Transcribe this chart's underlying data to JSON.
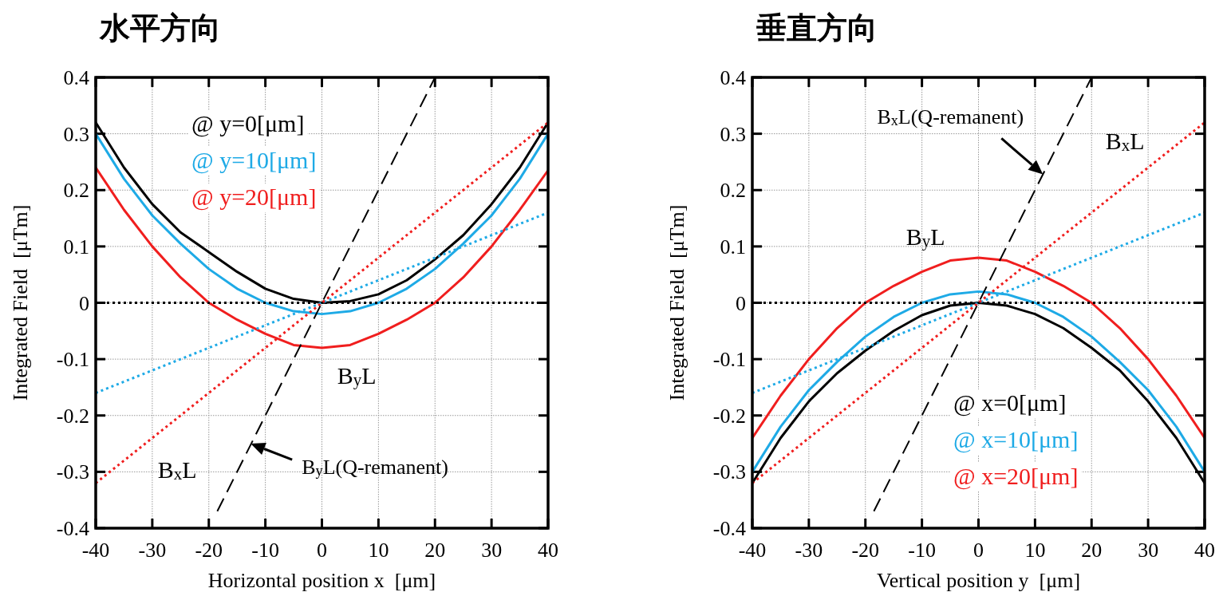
{
  "chart_data": [
    {
      "type": "line",
      "title": "水平方向",
      "xlabel": "Horizontal position x  [μm]",
      "ylabel": "Integrated Field  [μTm]",
      "xlim": [
        -40,
        40
      ],
      "ylim": [
        -0.4,
        0.4
      ],
      "xticks": [
        -40,
        -30,
        -20,
        -10,
        0,
        10,
        20,
        30,
        40
      ],
      "yticks": [
        -0.4,
        -0.3,
        -0.2,
        -0.1,
        0,
        0.1,
        0.2,
        0.3,
        0.4
      ],
      "grid": true,
      "legend": "top left",
      "series": [
        {
          "name": "@ y=0[μm]",
          "color": "#000000",
          "line_style": "solid",
          "x": [
            -40,
            -35,
            -30,
            -25,
            -20,
            -15,
            -10,
            -5,
            0,
            5,
            10,
            15,
            20,
            25,
            30,
            35,
            40
          ],
          "values": [
            0.32,
            0.24,
            0.175,
            0.125,
            0.09,
            0.055,
            0.025,
            0.007,
            0,
            0.003,
            0.015,
            0.04,
            0.077,
            0.12,
            0.175,
            0.24,
            0.32
          ]
        },
        {
          "name": "@ y=10[μm]",
          "color": "#1eaae6",
          "line_style": "solid",
          "x": [
            -40,
            -35,
            -30,
            -25,
            -20,
            -15,
            -10,
            -5,
            0,
            5,
            10,
            15,
            20,
            25,
            30,
            35,
            40
          ],
          "values": [
            0.3,
            0.22,
            0.155,
            0.105,
            0.06,
            0.025,
            0,
            -0.015,
            -0.02,
            -0.015,
            0,
            0.025,
            0.06,
            0.105,
            0.155,
            0.22,
            0.3
          ]
        },
        {
          "name": "@ y=20[μm]",
          "color": "#f01e1e",
          "line_style": "solid",
          "x": [
            -40,
            -35,
            -30,
            -25,
            -20,
            -15,
            -10,
            -5,
            0,
            5,
            10,
            15,
            20,
            25,
            30,
            35,
            40
          ],
          "values": [
            0.24,
            0.165,
            0.1,
            0.045,
            0,
            -0.03,
            -0.055,
            -0.075,
            -0.08,
            -0.075,
            -0.055,
            -0.03,
            0,
            0.045,
            0.1,
            0.165,
            0.235
          ]
        },
        {
          "color": "#000000",
          "line_style": "dotted",
          "x": [
            -40,
            40
          ],
          "values": [
            0,
            0
          ]
        },
        {
          "color": "#1eaae6",
          "line_style": "dotted",
          "x": [
            -40,
            40
          ],
          "values": [
            -0.16,
            0.16
          ]
        },
        {
          "color": "#f01e1e",
          "line_style": "dotted",
          "x": [
            -40,
            40
          ],
          "values": [
            -0.32,
            0.32
          ]
        },
        {
          "color": "#000000",
          "line_style": "dashed",
          "x": [
            -18.5,
            20
          ],
          "values": [
            -0.37,
            0.4
          ]
        }
      ],
      "annotations": [
        "B$_{y}$L",
        "B$_{x}$L",
        {
          "text": "B$_{y}$L(Q-remanent)",
          "x": -12.6,
          "y": -0.25
        }
      ]
    },
    {
      "type": "line",
      "title": "垂直方向",
      "xlabel": "Vertical position y  [μm]",
      "ylabel": "Integrated Field  [μTm]",
      "xlim": [
        -40,
        40
      ],
      "ylim": [
        -0.4,
        0.4
      ],
      "xticks": [
        -40,
        -30,
        -20,
        -10,
        0,
        10,
        20,
        30,
        40
      ],
      "yticks": [
        -0.4,
        -0.3,
        -0.2,
        -0.1,
        0,
        0.1,
        0.2,
        0.3,
        0.4
      ],
      "grid": true,
      "legend": "bottom right",
      "series": [
        {
          "name": "@ x=0[μm]",
          "color": "#000000",
          "line_style": "solid",
          "x": [
            -40,
            -35,
            -30,
            -25,
            -20,
            -15,
            -10,
            -5,
            0,
            5,
            10,
            15,
            20,
            25,
            30,
            35,
            40
          ],
          "values": [
            -0.32,
            -0.24,
            -0.175,
            -0.125,
            -0.085,
            -0.05,
            -0.022,
            -0.005,
            0,
            -0.005,
            -0.02,
            -0.045,
            -0.08,
            -0.12,
            -0.175,
            -0.24,
            -0.32
          ]
        },
        {
          "name": "@ x=10[μm]",
          "color": "#1eaae6",
          "line_style": "solid",
          "x": [
            -40,
            -35,
            -30,
            -25,
            -20,
            -15,
            -10,
            -5,
            0,
            5,
            10,
            15,
            20,
            25,
            30,
            35,
            40
          ],
          "values": [
            -0.3,
            -0.22,
            -0.155,
            -0.105,
            -0.06,
            -0.025,
            0,
            0.015,
            0.02,
            0.015,
            0,
            -0.025,
            -0.06,
            -0.105,
            -0.155,
            -0.22,
            -0.3
          ]
        },
        {
          "name": "@ x=20[μm]",
          "color": "#f01e1e",
          "line_style": "solid",
          "x": [
            -40,
            -35,
            -30,
            -25,
            -20,
            -15,
            -10,
            -5,
            0,
            5,
            10,
            15,
            20,
            25,
            30,
            35,
            40
          ],
          "values": [
            -0.24,
            -0.165,
            -0.1,
            -0.045,
            0,
            0.03,
            0.055,
            0.075,
            0.08,
            0.075,
            0.055,
            0.03,
            0,
            -0.045,
            -0.1,
            -0.165,
            -0.24
          ]
        },
        {
          "color": "#000000",
          "line_style": "dotted",
          "x": [
            -40,
            40
          ],
          "values": [
            0,
            0
          ]
        },
        {
          "color": "#1eaae6",
          "line_style": "dotted",
          "x": [
            -40,
            40
          ],
          "values": [
            -0.16,
            0.16
          ]
        },
        {
          "color": "#f01e1e",
          "line_style": "dotted",
          "x": [
            -40,
            40
          ],
          "values": [
            -0.32,
            0.32
          ]
        },
        {
          "color": "#000000",
          "line_style": "dashed",
          "x": [
            -18.5,
            20
          ],
          "values": [
            -0.37,
            0.4
          ]
        }
      ],
      "annotations": [
        "B$_{y}$L",
        "B$_{x}$L",
        {
          "text": "B$_{x}$L(Q-remanent)",
          "x": 11.4,
          "y": 0.228
        }
      ]
    }
  ]
}
